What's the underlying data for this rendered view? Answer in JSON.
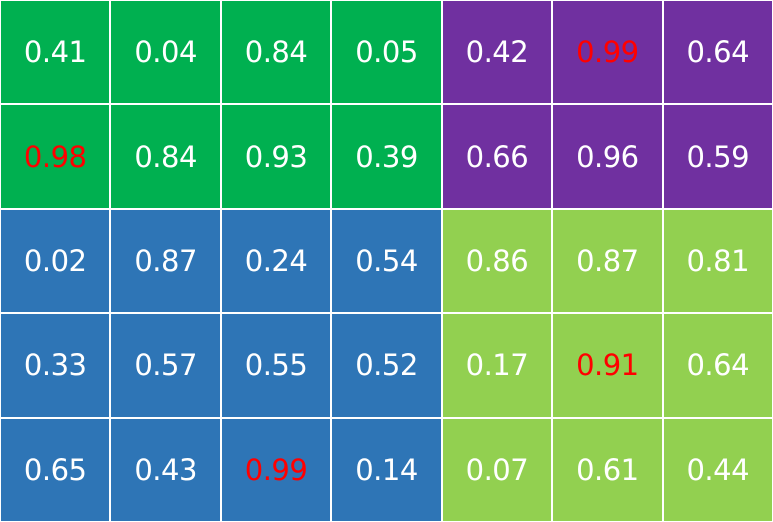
{
  "colors": {
    "green": "#00b050",
    "purple": "#7030a0",
    "blue": "#2e75b6",
    "light_green": "#92d050",
    "text": "#ffffff",
    "highlight": "#ff0000"
  },
  "rows": [
    [
      {
        "value": "0.41",
        "fill": "green"
      },
      {
        "value": "0.04",
        "fill": "green"
      },
      {
        "value": "0.84",
        "fill": "green"
      },
      {
        "value": "0.05",
        "fill": "green"
      },
      {
        "value": "0.42",
        "fill": "purple"
      },
      {
        "value": "0.99",
        "fill": "purple",
        "highlight": true
      },
      {
        "value": "0.64",
        "fill": "purple"
      }
    ],
    [
      {
        "value": "0.98",
        "fill": "green",
        "highlight": true
      },
      {
        "value": "0.84",
        "fill": "green"
      },
      {
        "value": "0.93",
        "fill": "green"
      },
      {
        "value": "0.39",
        "fill": "green"
      },
      {
        "value": "0.66",
        "fill": "purple"
      },
      {
        "value": "0.96",
        "fill": "purple"
      },
      {
        "value": "0.59",
        "fill": "purple"
      }
    ],
    [
      {
        "value": "0.02",
        "fill": "blue"
      },
      {
        "value": "0.87",
        "fill": "blue"
      },
      {
        "value": "0.24",
        "fill": "blue"
      },
      {
        "value": "0.54",
        "fill": "blue"
      },
      {
        "value": "0.86",
        "fill": "light_green"
      },
      {
        "value": "0.87",
        "fill": "light_green"
      },
      {
        "value": "0.81",
        "fill": "light_green"
      }
    ],
    [
      {
        "value": "0.33",
        "fill": "blue"
      },
      {
        "value": "0.57",
        "fill": "blue"
      },
      {
        "value": "0.55",
        "fill": "blue"
      },
      {
        "value": "0.52",
        "fill": "blue"
      },
      {
        "value": "0.17",
        "fill": "light_green"
      },
      {
        "value": "0.91",
        "fill": "light_green",
        "highlight": true
      },
      {
        "value": "0.64",
        "fill": "light_green"
      }
    ],
    [
      {
        "value": "0.65",
        "fill": "blue"
      },
      {
        "value": "0.43",
        "fill": "blue"
      },
      {
        "value": "0.99",
        "fill": "blue",
        "highlight": true
      },
      {
        "value": "0.14",
        "fill": "blue"
      },
      {
        "value": "0.07",
        "fill": "light_green"
      },
      {
        "value": "0.61",
        "fill": "light_green"
      },
      {
        "value": "0.44",
        "fill": "light_green"
      }
    ]
  ]
}
